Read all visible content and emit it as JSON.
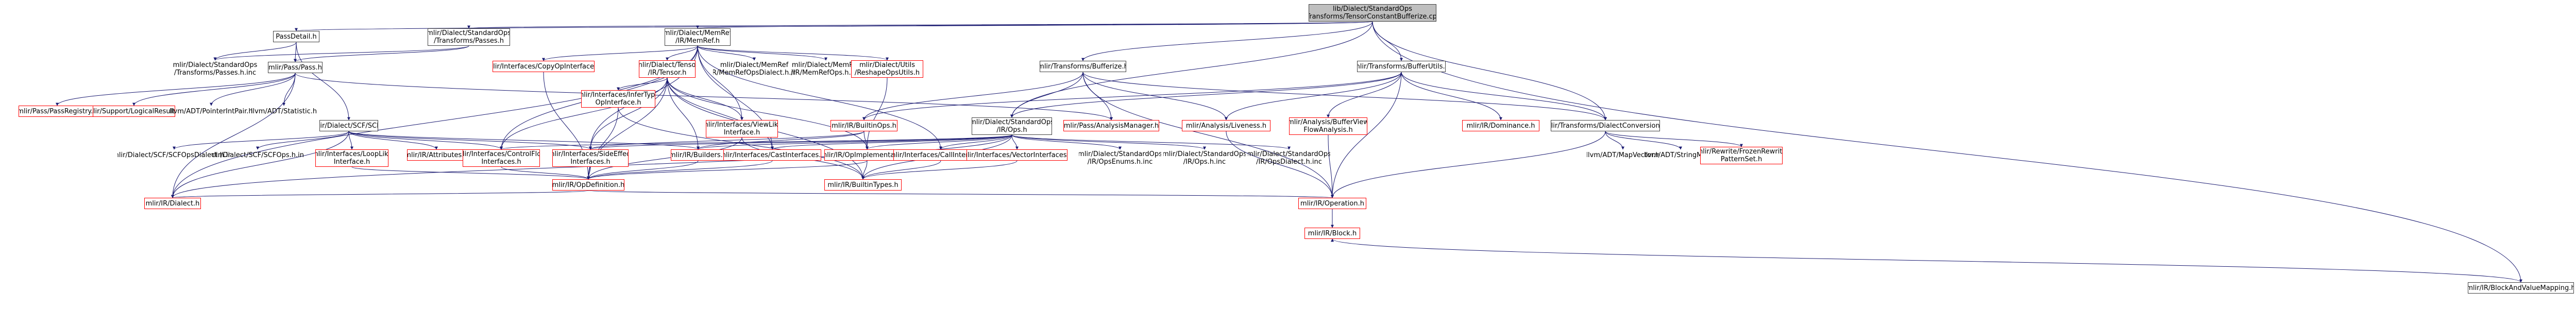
{
  "colors": {
    "edge": "#191970",
    "root_fill": "#bfbfbf",
    "normal_border": "#404040",
    "missing_border": "#ff0000",
    "external_border": "#bfbfbf"
  },
  "nodes": {
    "root": "lib/Dialect/StandardOps\n/Transforms/TensorConstantBufferize.cpp",
    "passdetail": "PassDetail.h",
    "std_passes": "mlir/Dialect/StandardOps\n/Transforms/Passes.h",
    "memref": "mlir/Dialect/MemRef\n/IR/MemRef.h",
    "bufferize": "mlir/Transforms/Bufferize.h",
    "bufferutils": "mlir/Transforms/BufferUtils.h",
    "blockandvalue": "mlir/IR/BlockAndValueMapping.h",
    "std_passes_inc": "mlir/Dialect/StandardOps\n/Transforms/Passes.h.inc",
    "pass": "mlir/Pass/Pass.h",
    "scf": "mlir/Dialect/SCF/SCF.h",
    "copyop": "mlir/Interfaces/CopyOpInterface.h",
    "tensor": "mlir/Dialect/Tensor\n/IR/Tensor.h",
    "memref_dialect_inc": "mlir/Dialect/MemRef\n/IR/MemRefOpsDialect.h.inc",
    "memref_ops_inc": "mlir/Dialect/MemRef\n/IR/MemRefOps.h.inc",
    "reshapeutils": "mlir/Dialect/Utils\n/ReshapeOpsUtils.h",
    "dialectconversion": "mlir/Transforms/DialectConversion.h",
    "passregistry": "mlir/Pass/PassRegistry.h",
    "logicalresult": "mlir/Support/LogicalResult.h",
    "pointerintpair": "llvm/ADT/PointerIntPair.h",
    "statistic": "llvm/ADT/Statistic.h",
    "scfops_dialect_inc": "mlir/Dialect/SCF/SCFOpsDialect.h.inc",
    "scfops_inc": "mlir/Dialect/SCF/SCFOps.h.inc",
    "looplike": "mlir/Interfaces/LoopLike\nInterface.h",
    "attributes": "mlir/IR/Attributes.h",
    "controlflow": "mlir/Interfaces/ControlFlow\nInterfaces.h",
    "sideeffect": "mlir/Interfaces/SideEffect\nInterfaces.h",
    "infertype": "mlir/Interfaces/InferType\nOpInterface.h",
    "viewlike": "mlir/Interfaces/ViewLike\nInterface.h",
    "builtinops": "mlir/IR/BuiltinOps.h",
    "std_ops": "mlir/Dialect/StandardOps\n/IR/Ops.h",
    "passanalysis": "mlir/Pass/AnalysisManager.h",
    "liveness": "mlir/Analysis/Liveness.h",
    "bufferviewflow": "mlir/Analysis/BufferView\nFlowAnalysis.h",
    "dominance": "mlir/IR/Dominance.h",
    "builders": "mlir/IR/Builders.h",
    "castinterfaces": "mlir/Interfaces/CastInterfaces.h",
    "opimpl": "mlir/IR/OpImplementation.h",
    "callinterfaces": "mlir/Interfaces/CallInterfaces.h",
    "vectorinterfaces": "mlir/Interfaces/VectorInterfaces.h",
    "std_openums": "mlir/Dialect/StandardOps\n/IR/OpsEnums.h.inc",
    "std_ops_inc": "mlir/Dialect/StandardOps\n/IR/Ops.h.inc",
    "std_opsdialect_inc": "mlir/Dialect/StandardOps\n/IR/OpsDialect.h.inc",
    "mapvector": "llvm/ADT/MapVector.h",
    "stringmap": "llvm/ADT/StringMap.h",
    "frozenrewrite": "mlir/Rewrite/FrozenRewrite\nPatternSet.h",
    "opdefinition": "mlir/IR/OpDefinition.h",
    "builtintypes": "mlir/IR/BuiltinTypes.h",
    "dialect": "mlir/IR/Dialect.h",
    "operation": "mlir/IR/Operation.h",
    "block": "mlir/IR/Block.h"
  }
}
